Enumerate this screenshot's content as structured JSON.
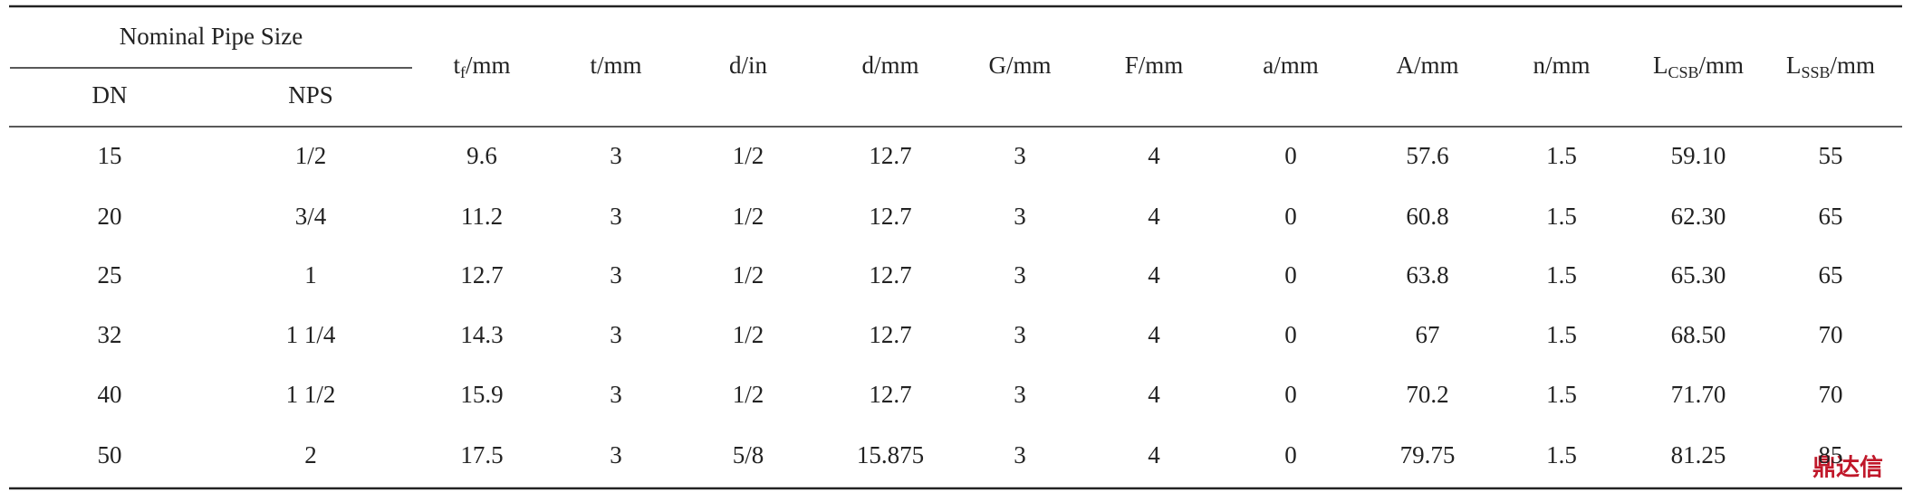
{
  "table": {
    "group_header": "Nominal Pipe Size",
    "columns": [
      {
        "text": "DN"
      },
      {
        "text": "NPS"
      },
      {
        "text": "t",
        "sub": "f",
        "unit": "/mm"
      },
      {
        "text": "t/mm"
      },
      {
        "text": "d/in"
      },
      {
        "text": "d/mm"
      },
      {
        "text": "G/mm"
      },
      {
        "text": "F/mm"
      },
      {
        "text": "a/mm"
      },
      {
        "text": "A/mm"
      },
      {
        "text": "n/mm"
      },
      {
        "text": "L",
        "sub": "CSB",
        "unit": "/mm"
      },
      {
        "text": "L",
        "sub": "SSB",
        "unit": "/mm"
      }
    ],
    "rows": [
      [
        "15",
        "1/2",
        "9.6",
        "3",
        "1/2",
        "12.7",
        "3",
        "4",
        "0",
        "57.6",
        "1.5",
        "59.10",
        "55"
      ],
      [
        "20",
        "3/4",
        "11.2",
        "3",
        "1/2",
        "12.7",
        "3",
        "4",
        "0",
        "60.8",
        "1.5",
        "62.30",
        "65"
      ],
      [
        "25",
        "1",
        "12.7",
        "3",
        "1/2",
        "12.7",
        "3",
        "4",
        "0",
        "63.8",
        "1.5",
        "65.30",
        "65"
      ],
      [
        "32",
        "1 1/4",
        "14.3",
        "3",
        "1/2",
        "12.7",
        "3",
        "4",
        "0",
        "67",
        "1.5",
        "68.50",
        "70"
      ],
      [
        "40",
        "1 1/2",
        "15.9",
        "3",
        "1/2",
        "12.7",
        "3",
        "4",
        "0",
        "70.2",
        "1.5",
        "71.70",
        "70"
      ],
      [
        "50",
        "2",
        "17.5",
        "3",
        "5/8",
        "15.875",
        "3",
        "4",
        "0",
        "79.75",
        "1.5",
        "81.25",
        "85"
      ]
    ]
  },
  "watermark": "鼎达信"
}
